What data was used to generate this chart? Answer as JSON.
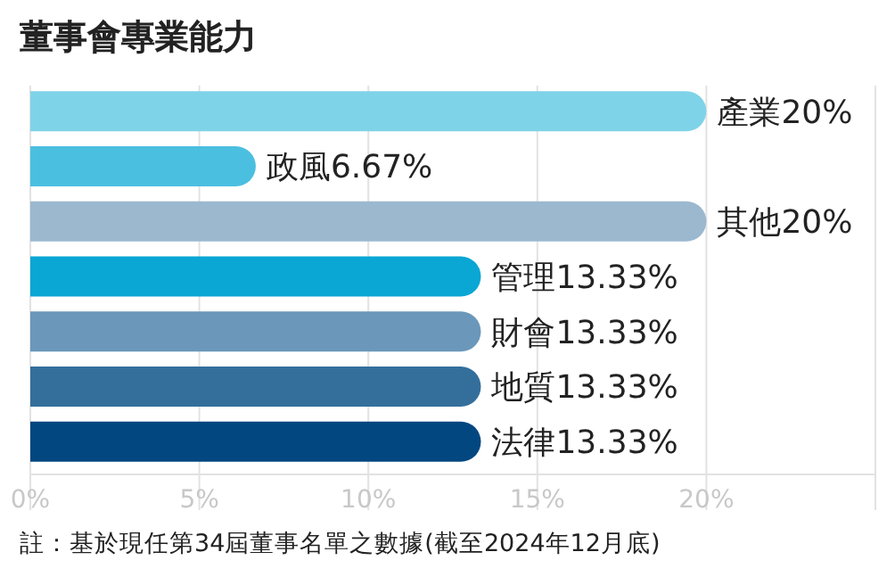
{
  "chart_data": {
    "type": "bar",
    "orientation": "horizontal",
    "title": "董事會專業能力",
    "categories": [
      "產業",
      "政風",
      "其他",
      "管理",
      "財會",
      "地質",
      "法律"
    ],
    "values": [
      20,
      6.67,
      20,
      13.33,
      13.33,
      13.33,
      13.33
    ],
    "value_labels": [
      "20%",
      "6.67%",
      "20%",
      "13.33%",
      "13.33%",
      "13.33%",
      "13.33%"
    ],
    "colors": [
      "#7fd3e8",
      "#4bbfe0",
      "#9bb8cf",
      "#0aa6d4",
      "#6a97ba",
      "#346f9c",
      "#02477f"
    ],
    "xlim": [
      0,
      25
    ],
    "xticks": [
      {
        "value": 0,
        "label": "0%"
      },
      {
        "value": 5,
        "label": "5%"
      },
      {
        "value": 10,
        "label": "10%"
      },
      {
        "value": 15,
        "label": "15%"
      },
      {
        "value": 20,
        "label": "20%"
      },
      {
        "value": 25,
        "label": null
      }
    ],
    "grid": "x",
    "annotations": [
      "註：基於現任第34屆董事名單之數據(截至2024年12月底)"
    ]
  }
}
